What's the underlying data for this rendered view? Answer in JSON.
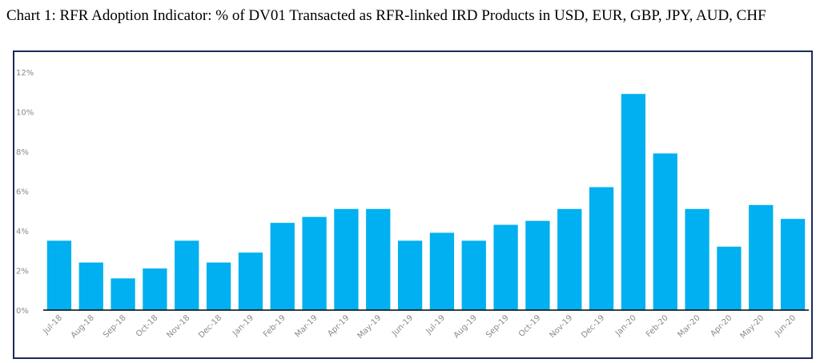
{
  "title": "Chart 1: RFR Adoption Indicator: % of DV01 Transacted as RFR-linked IRD Products in USD, EUR, GBP, JPY, AUD, CHF",
  "colors": {
    "bar": "#00b0f0",
    "frame": "#1b2a5a",
    "axis": "#000000",
    "tick_text": "#8a8a8a"
  },
  "chart_data": {
    "type": "bar",
    "title": "Chart 1: RFR Adoption Indicator: % of DV01 Transacted as RFR-linked IRD Products in USD, EUR, GBP, JPY, AUD, CHF",
    "xlabel": "",
    "ylabel": "",
    "ylim": [
      0,
      12
    ],
    "yticks": [
      "0%",
      "2%",
      "4%",
      "6%",
      "8%",
      "10%",
      "12%"
    ],
    "grid": false,
    "legend": "none",
    "categories": [
      "Jul-18",
      "Aug-18",
      "Sep-18",
      "Oct-18",
      "Nov-18",
      "Dec-18",
      "Jan-19",
      "Feb-19",
      "Mar-19",
      "Apr-19",
      "May-19",
      "Jun-19",
      "Jul-19",
      "Aug-19",
      "Sep-19",
      "Oct-19",
      "Nov-19",
      "Dec-19",
      "Jan-20",
      "Feb-20",
      "Mar-20",
      "Apr-20",
      "May-20",
      "Jun-20"
    ],
    "values": [
      3.5,
      2.4,
      1.6,
      2.1,
      3.5,
      2.4,
      2.9,
      4.4,
      4.7,
      5.1,
      5.1,
      3.5,
      3.9,
      3.5,
      4.3,
      4.5,
      5.1,
      6.2,
      10.9,
      7.9,
      5.1,
      3.2,
      5.3,
      4.6
    ]
  }
}
